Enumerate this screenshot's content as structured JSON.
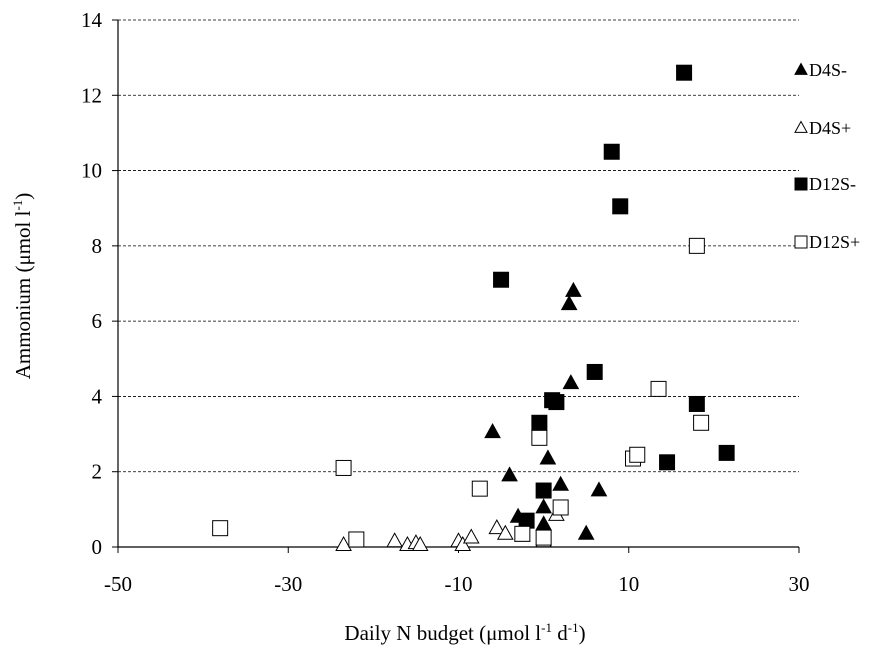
{
  "chart_data": {
    "type": "scatter",
    "xlabel": "Daily  N budget (μmol l",
    "xlabel_sup1": "-1",
    "xlabel_mid": " d",
    "xlabel_sup2": "-1",
    "xlabel_end": ")",
    "ylabel": "Ammonium  (μmol l",
    "ylabel_sup": "-1",
    "ylabel_end": ")",
    "xlim": [
      -50,
      30
    ],
    "ylim": [
      0,
      14
    ],
    "x_ticks": [
      -50,
      -30,
      -10,
      10,
      30
    ],
    "y_ticks": [
      0,
      2,
      4,
      6,
      8,
      10,
      12,
      14
    ],
    "grid": "horizontal dashed",
    "legend_position": "right",
    "series": [
      {
        "name": "D4S-",
        "marker": "triangle-filled",
        "color": "#000000",
        "points": [
          [
            3.5,
            6.8
          ],
          [
            3,
            6.45
          ],
          [
            3.2,
            4.35
          ],
          [
            -6,
            3.05
          ],
          [
            -4,
            1.9
          ],
          [
            0.5,
            2.35
          ],
          [
            2,
            1.65
          ],
          [
            6.5,
            1.5
          ],
          [
            -3,
            0.8
          ],
          [
            0,
            1.05
          ],
          [
            0,
            0.6
          ],
          [
            5,
            0.35
          ]
        ]
      },
      {
        "name": "D4S+",
        "marker": "triangle-open",
        "color": "#000000",
        "points": [
          [
            -23.5,
            0.05
          ],
          [
            -17.5,
            0.15
          ],
          [
            -16,
            0.05
          ],
          [
            -15,
            0.1
          ],
          [
            -14.5,
            0.05
          ],
          [
            -10,
            0.15
          ],
          [
            -9.5,
            0.05
          ],
          [
            -8.5,
            0.25
          ],
          [
            -5.5,
            0.5
          ],
          [
            -4.5,
            0.35
          ],
          [
            -2.5,
            0.3
          ],
          [
            1.5,
            0.85
          ],
          [
            0,
            0.2
          ],
          [
            0,
            0.15
          ]
        ]
      },
      {
        "name": "D12S-",
        "marker": "square-filled",
        "color": "#000000",
        "points": [
          [
            16.5,
            12.6
          ],
          [
            8,
            10.5
          ],
          [
            9,
            9.05
          ],
          [
            -5,
            7.1
          ],
          [
            6,
            4.65
          ],
          [
            1,
            3.9
          ],
          [
            1.5,
            3.85
          ],
          [
            -0.5,
            3.3
          ],
          [
            18,
            3.8
          ],
          [
            21.5,
            2.5
          ],
          [
            14.5,
            2.25
          ],
          [
            0,
            1.5
          ],
          [
            -2,
            0.7
          ]
        ]
      },
      {
        "name": "D12S+",
        "marker": "square-open",
        "color": "#000000",
        "points": [
          [
            18,
            8
          ],
          [
            13.5,
            4.2
          ],
          [
            18.5,
            3.3
          ],
          [
            10.5,
            2.35
          ],
          [
            11,
            2.45
          ],
          [
            -38,
            0.5
          ],
          [
            -23.5,
            2.1
          ],
          [
            -22,
            0.2
          ],
          [
            -7.5,
            1.55
          ],
          [
            -0.5,
            2.9
          ],
          [
            2,
            1.05
          ],
          [
            -2.5,
            0.35
          ],
          [
            0,
            0.25
          ]
        ]
      }
    ]
  }
}
